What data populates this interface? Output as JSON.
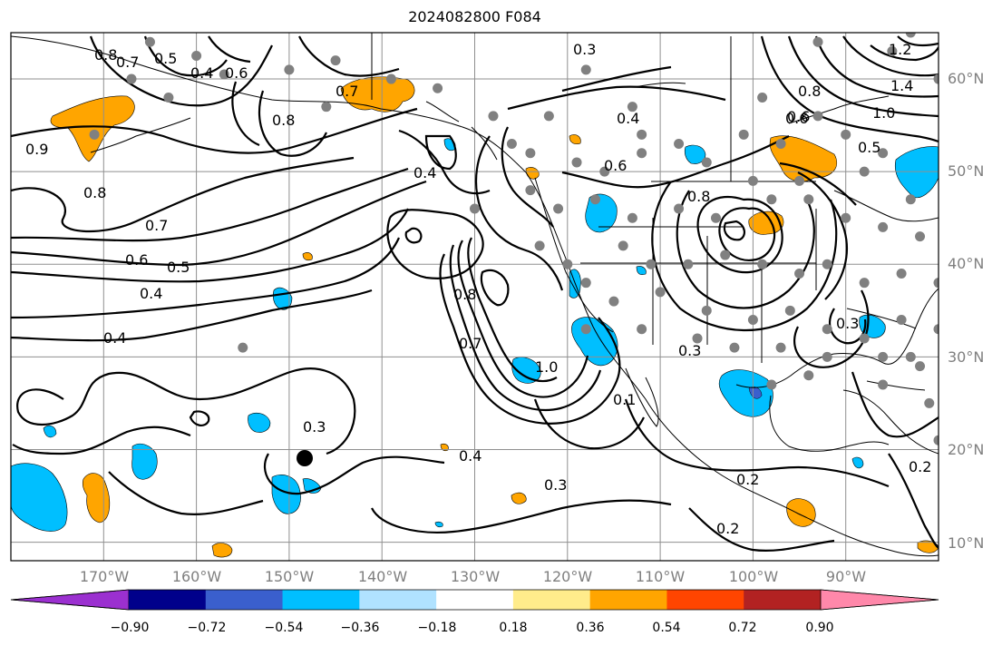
{
  "title": "2024082800 F084",
  "map": {
    "lon_range": [
      -180,
      -80
    ],
    "lat_range": [
      8,
      65
    ],
    "grid_lons": [
      -170,
      -160,
      -150,
      -140,
      -130,
      -120,
      -110,
      -100,
      -90
    ],
    "grid_lats": [
      10,
      20,
      30,
      40,
      50,
      60
    ],
    "lat_labels": [
      "60°N",
      "50°N",
      "40°N",
      "30°N",
      "20°N",
      "10°N"
    ],
    "lon_labels": [
      "170°W",
      "160°W",
      "150°W",
      "140°W",
      "130°W",
      "120°W",
      "110°W",
      "100°W",
      "90°W"
    ],
    "contour_labels": [
      "0.8",
      "0.7",
      "0.5",
      "0.4",
      "0.6",
      "0.7",
      "0.8",
      "0.3",
      "0.4",
      "0.6",
      "0.8",
      "1.2",
      "1.4",
      "0.6",
      "1.0",
      "0.5",
      "0.9",
      "0.8",
      "0.7",
      "0.6",
      "0.5",
      "0.4",
      "0.4",
      "0.8",
      "0.7",
      "1.0",
      "0.4",
      "0.3",
      "0.4",
      "0.3",
      "0.2",
      "0.2",
      "0.2",
      "0.1",
      "0.3",
      "0.3",
      "0.8",
      "0.6"
    ],
    "stations": [
      [
        -165,
        64
      ],
      [
        -160,
        62.5
      ],
      [
        -157,
        60.5
      ],
      [
        -163,
        58
      ],
      [
        -150,
        61
      ],
      [
        -145,
        62
      ],
      [
        -139,
        60
      ],
      [
        -134,
        59
      ],
      [
        -122,
        56
      ],
      [
        -118,
        61
      ],
      [
        -113,
        57
      ],
      [
        -112,
        54
      ],
      [
        -108,
        53
      ],
      [
        -105,
        51
      ],
      [
        -101,
        54
      ],
      [
        -97,
        53
      ],
      [
        -93,
        56
      ],
      [
        -90,
        54
      ],
      [
        -86,
        52
      ],
      [
        -80,
        60
      ],
      [
        -83,
        65
      ],
      [
        -85,
        63
      ],
      [
        -93,
        64
      ],
      [
        -99,
        58
      ],
      [
        -124,
        48
      ],
      [
        -121,
        46
      ],
      [
        -117,
        47
      ],
      [
        -113,
        45
      ],
      [
        -108,
        46
      ],
      [
        -104,
        45
      ],
      [
        -98,
        47
      ],
      [
        -94,
        47
      ],
      [
        -90,
        45
      ],
      [
        -86,
        44
      ],
      [
        -82,
        43
      ],
      [
        -123,
        42
      ],
      [
        -120,
        40
      ],
      [
        -114,
        42
      ],
      [
        -111,
        40
      ],
      [
        -107,
        40
      ],
      [
        -103,
        41
      ],
      [
        -99,
        40
      ],
      [
        -95,
        39
      ],
      [
        -92,
        40
      ],
      [
        -88,
        38
      ],
      [
        -84,
        39
      ],
      [
        -80,
        38
      ],
      [
        -118,
        38
      ],
      [
        -115,
        36
      ],
      [
        -110,
        37
      ],
      [
        -105,
        35
      ],
      [
        -100,
        34
      ],
      [
        -96,
        35
      ],
      [
        -92,
        33
      ],
      [
        -88,
        32
      ],
      [
        -84,
        34
      ],
      [
        -80,
        33
      ],
      [
        -118,
        33
      ],
      [
        -112,
        33
      ],
      [
        -106,
        32
      ],
      [
        -102,
        31
      ],
      [
        -97,
        31
      ],
      [
        -92,
        30
      ],
      [
        -86,
        30
      ],
      [
        -82,
        29
      ],
      [
        -98,
        27
      ],
      [
        -94,
        28
      ],
      [
        -81,
        25
      ],
      [
        -83,
        30
      ],
      [
        -155,
        31
      ],
      [
        -167,
        60
      ],
      [
        -146,
        57
      ],
      [
        -171,
        54
      ],
      [
        -128,
        56
      ],
      [
        -124,
        52
      ],
      [
        -119,
        51
      ],
      [
        -116,
        50
      ],
      [
        -112,
        52
      ],
      [
        -100,
        49
      ],
      [
        -95,
        49
      ],
      [
        -126,
        53
      ],
      [
        -88,
        50
      ],
      [
        -83,
        47
      ],
      [
        -130,
        46
      ],
      [
        -86,
        27
      ],
      [
        -80,
        21
      ]
    ],
    "shade_colors": {
      "pos_36": "#ffa500",
      "neg_36": "#00bfff",
      "neg_54": "#3a5fcd"
    }
  },
  "colorbar": {
    "colors": [
      "#9b30d0",
      "#00008b",
      "#3a5fcd",
      "#00bfff",
      "#b0e2ff",
      "#ffffff",
      "#ffec8b",
      "#ffa500",
      "#ff4500",
      "#b22222",
      "#ff88aa"
    ],
    "tick_labels": [
      "−0.90",
      "−0.72",
      "−0.54",
      "−0.36",
      "−0.18",
      "0.18",
      "0.36",
      "0.54",
      "0.72",
      "0.90"
    ]
  }
}
